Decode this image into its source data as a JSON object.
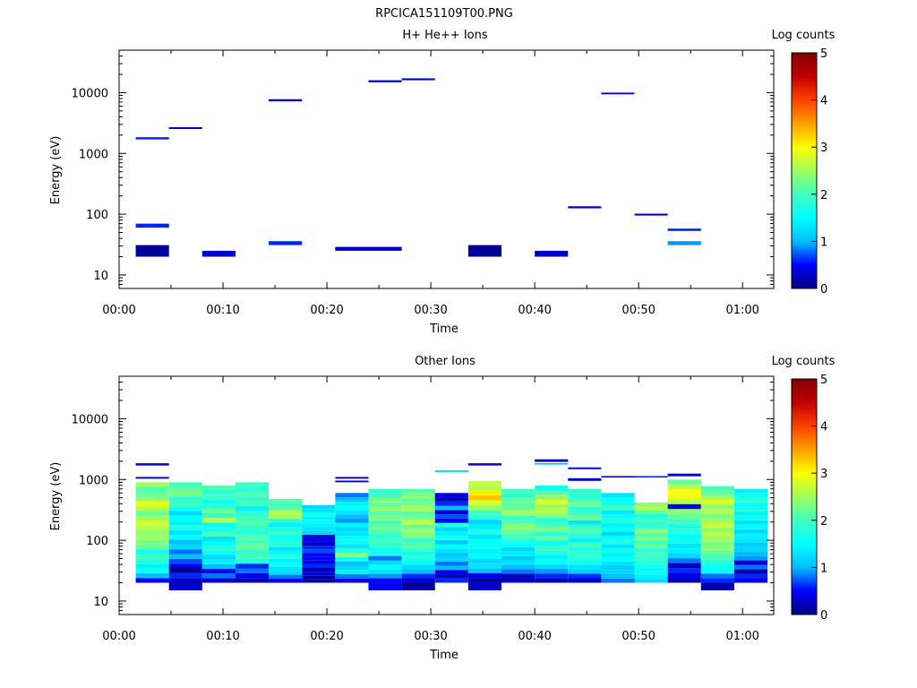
{
  "figure_title": "RPCICA151109T00.PNG",
  "colormap": [
    "#000080",
    "#0000ff",
    "#00bfff",
    "#00ffff",
    "#40ffbf",
    "#9fff5f",
    "#ffff00",
    "#ff9f00",
    "#ff3f00",
    "#c00000",
    "#800000"
  ],
  "chart_data": [
    {
      "type": "heatmap",
      "title": "H+ He++ Ions",
      "xlabel": "Time",
      "ylabel": "Energy (eV)",
      "x_ticks": [
        "00:00",
        "00:10",
        "00:20",
        "00:30",
        "00:40",
        "00:50",
        "01:00"
      ],
      "y_ticks": [
        "10",
        "100",
        "1000",
        "10000"
      ],
      "y_scale": "log",
      "ylim": [
        6,
        50000
      ],
      "xlim_minutes": [
        0,
        63
      ],
      "grid": false,
      "colorbar": {
        "label": "Log counts",
        "range": [
          0,
          5
        ],
        "ticks": [
          "0",
          "1",
          "2",
          "3",
          "4",
          "5"
        ]
      },
      "cells": [
        {
          "t0": 1.6,
          "t1": 4.8,
          "e0": 1700,
          "e1": 1850,
          "log_counts": 0.6
        },
        {
          "t0": 1.6,
          "t1": 4.8,
          "e0": 60,
          "e1": 70,
          "log_counts": 0.6
        },
        {
          "t0": 1.6,
          "t1": 4.8,
          "e0": 20,
          "e1": 31,
          "log_counts": 0.1
        },
        {
          "t0": 4.8,
          "t1": 8.0,
          "e0": 2520,
          "e1": 2700,
          "log_counts": 0.3
        },
        {
          "t0": 8.0,
          "t1": 11.2,
          "e0": 20,
          "e1": 25,
          "log_counts": 0.3
        },
        {
          "t0": 14.4,
          "t1": 17.6,
          "e0": 7200,
          "e1": 7800,
          "log_counts": 0.3
        },
        {
          "t0": 14.4,
          "t1": 17.6,
          "e0": 31,
          "e1": 36,
          "log_counts": 0.6
        },
        {
          "t0": 20.8,
          "t1": 27.2,
          "e0": 25,
          "e1": 29,
          "log_counts": 0.3
        },
        {
          "t0": 24.0,
          "t1": 27.2,
          "e0": 14800,
          "e1": 16000,
          "log_counts": 0.3
        },
        {
          "t0": 27.2,
          "t1": 30.4,
          "e0": 16000,
          "e1": 17200,
          "log_counts": 0.3
        },
        {
          "t0": 33.6,
          "t1": 36.8,
          "e0": 20,
          "e1": 31,
          "log_counts": 0.1
        },
        {
          "t0": 40.0,
          "t1": 43.2,
          "e0": 20,
          "e1": 25,
          "log_counts": 0.3
        },
        {
          "t0": 43.2,
          "t1": 46.4,
          "e0": 125,
          "e1": 135,
          "log_counts": 0.3
        },
        {
          "t0": 46.4,
          "t1": 49.6,
          "e0": 9400,
          "e1": 10000,
          "log_counts": 0.3
        },
        {
          "t0": 49.6,
          "t1": 52.8,
          "e0": 95,
          "e1": 102,
          "log_counts": 0.3
        },
        {
          "t0": 52.8,
          "t1": 56.0,
          "e0": 53,
          "e1": 58,
          "log_counts": 0.6
        },
        {
          "t0": 52.8,
          "t1": 56.0,
          "e0": 31,
          "e1": 36,
          "log_counts": 0.9
        }
      ]
    },
    {
      "type": "heatmap",
      "title": "Other Ions",
      "xlabel": "Time",
      "ylabel": "Energy (eV)",
      "x_ticks": [
        "00:00",
        "00:10",
        "00:20",
        "00:30",
        "00:40",
        "00:50",
        "01:00"
      ],
      "y_ticks": [
        "10",
        "100",
        "1000",
        "10000"
      ],
      "y_scale": "log",
      "ylim": [
        6,
        50000
      ],
      "xlim_minutes": [
        0,
        63
      ],
      "grid": false,
      "colorbar": {
        "label": "Log counts",
        "range": [
          0,
          5
        ],
        "ticks": [
          "0",
          "1",
          "2",
          "3",
          "4",
          "5"
        ]
      },
      "columns": [
        {
          "t0": 1.6,
          "t1": 4.8,
          "e_top": 900,
          "values": [
            0.5,
            1.0,
            1.6,
            1.4,
            1.8,
            2.0,
            1.6,
            2.2,
            2.3,
            2.5,
            2.4,
            2.6,
            2.8,
            2.5,
            2.2,
            2.6,
            2.9,
            2.4,
            2.2,
            2.1,
            2.5
          ],
          "extra": [
            {
              "e0": 1700,
              "e1": 1850,
              "v": 0.3
            },
            {
              "e0": 1030,
              "e1": 1100,
              "v": 0.3
            }
          ]
        },
        {
          "t0": 4.8,
          "t1": 8.0,
          "e_top": 900,
          "values": [
            0.2,
            0.6,
            0.0,
            0.4,
            0.7,
            1.0,
            0.8,
            1.2,
            1.0,
            1.5,
            1.3,
            1.7,
            1.4,
            1.5,
            1.2,
            1.6,
            2.0,
            1.8,
            2.3,
            2.2,
            2.0
          ],
          "extra": [
            {
              "e0": 15,
              "e1": 20,
              "v": 0.3
            }
          ]
        },
        {
          "t0": 8.0,
          "t1": 11.2,
          "e_top": 800,
          "values": [
            0.3,
            0.8,
            0.5,
            1.0,
            1.4,
            1.2,
            1.6,
            1.8,
            1.5,
            1.3,
            2.0,
            1.7,
            1.5,
            2.6,
            1.9,
            2.2,
            1.8,
            1.6,
            2.0,
            1.8,
            2.1
          ]
        },
        {
          "t0": 11.2,
          "t1": 14.4,
          "e_top": 900,
          "values": [
            0.2,
            0.4,
            0.8,
            0.6,
            1.8,
            2.0,
            1.9,
            2.2,
            2.0,
            2.1,
            1.8,
            1.9,
            2.1,
            2.0,
            1.8,
            1.4,
            2.0,
            1.9,
            2.1,
            1.8,
            2.0
          ]
        },
        {
          "t0": 14.4,
          "t1": 17.6,
          "e_top": 480,
          "values": [
            0.4,
            0.8,
            1.2,
            1.3,
            1.5,
            1.4,
            1.8,
            1.5,
            1.3,
            1.8,
            1.7,
            1.6,
            1.9,
            1.7,
            1.4,
            1.8,
            2.5,
            2.6,
            2.2,
            2.0,
            2.1
          ]
        },
        {
          "t0": 17.6,
          "t1": 20.8,
          "e_top": 380,
          "values": [
            0.2,
            0.1,
            0.4,
            0.2,
            0.6,
            0.4,
            0.5,
            0.4,
            0.7,
            0.6,
            0.2,
            0.5,
            0.3,
            1.2,
            1.3,
            1.4,
            1.5,
            1.4,
            1.6,
            1.3,
            1.2
          ]
        },
        {
          "t0": 20.8,
          "t1": 24.0,
          "e_top": 600,
          "values": [
            0.4,
            0.8,
            1.4,
            1.2,
            1.0,
            1.6,
            2.4,
            1.8,
            1.3,
            1.6,
            1.5,
            1.3,
            1.2,
            1.4,
            0.9,
            1.0,
            1.3,
            1.5,
            1.4,
            1.0,
            0.8
          ],
          "extra": [
            {
              "e0": 1030,
              "e1": 1100,
              "v": 0.3
            },
            {
              "e0": 900,
              "e1": 960,
              "v": 0.3
            }
          ]
        },
        {
          "t0": 24.0,
          "t1": 27.2,
          "e_top": 700,
          "values": [
            0.5,
            0.9,
            1.3,
            1.5,
            1.2,
            0.8,
            1.7,
            1.6,
            1.9,
            2.0,
            1.8,
            2.1,
            2.2,
            2.0,
            2.3,
            2.1,
            2.4,
            2.2,
            2.3,
            2.0,
            1.9
          ],
          "extra": [
            {
              "e0": 15,
              "e1": 20,
              "v": 0.5
            }
          ]
        },
        {
          "t0": 27.2,
          "t1": 30.4,
          "e_top": 700,
          "values": [
            0.3,
            0.6,
            1.0,
            1.2,
            1.5,
            1.8,
            1.6,
            2.0,
            2.1,
            1.9,
            2.3,
            2.5,
            2.2,
            2.7,
            2.3,
            2.1,
            2.5,
            2.3,
            2.2,
            2.4,
            2.1
          ],
          "extra": [
            {
              "e0": 15,
              "e1": 20,
              "v": 0.1
            }
          ]
        },
        {
          "t0": 30.4,
          "t1": 33.6,
          "e_top": 600,
          "values": [
            0.6,
            0.2,
            0.4,
            1.0,
            0.8,
            1.2,
            1.0,
            1.3,
            1.5,
            1.1,
            1.6,
            1.4,
            1.2,
            1.8,
            0.5,
            0.7,
            0.3,
            1.0,
            0.6,
            0.2,
            0.4
          ],
          "extra": [
            {
              "e0": 1330,
              "e1": 1420,
              "v": 1.2
            }
          ]
        },
        {
          "t0": 33.6,
          "t1": 36.8,
          "e_top": 950,
          "values": [
            0.1,
            0.4,
            1.0,
            1.3,
            1.2,
            1.5,
            1.4,
            1.6,
            1.5,
            1.3,
            1.7,
            1.4,
            1.2,
            1.8,
            2.0,
            2.5,
            2.8,
            3.3,
            3.1,
            2.6,
            2.7
          ],
          "extra": [
            {
              "e0": 1700,
              "e1": 1850,
              "v": 0.3
            },
            {
              "e0": 15,
              "e1": 20,
              "v": 0.3
            }
          ]
        },
        {
          "t0": 36.8,
          "t1": 40.0,
          "e_top": 700,
          "values": [
            0.3,
            0.2,
            0.8,
            1.0,
            1.3,
            1.1,
            1.4,
            1.2,
            1.5,
            1.8,
            2.0,
            2.2,
            2.4,
            2.1,
            1.9,
            2.5,
            2.3,
            2.1,
            2.2,
            1.8,
            2.0
          ]
        },
        {
          "t0": 40.0,
          "t1": 43.2,
          "e_top": 800,
          "values": [
            0.2,
            0.6,
            0.9,
            1.2,
            1.5,
            1.4,
            1.7,
            2.0,
            1.6,
            2.2,
            1.8,
            2.3,
            2.0,
            1.8,
            2.4,
            2.6,
            2.5,
            2.8,
            2.4,
            2.1,
            1.6
          ],
          "extra": [
            {
              "e0": 1950,
              "e1": 2150,
              "v": 0.3
            },
            {
              "e0": 1760,
              "e1": 1860,
              "v": 1.0
            }
          ]
        },
        {
          "t0": 43.2,
          "t1": 46.4,
          "e_top": 700,
          "values": [
            0.3,
            0.6,
            1.1,
            1.3,
            1.6,
            1.8,
            1.9,
            1.7,
            2.0,
            1.4,
            1.8,
            2.1,
            1.9,
            1.3,
            2.2,
            2.0,
            1.8,
            2.3,
            2.0,
            1.8,
            1.9
          ],
          "extra": [
            {
              "e0": 1480,
              "e1": 1580,
              "v": 0.3
            },
            {
              "e0": 950,
              "e1": 1050,
              "v": 0.3
            }
          ]
        },
        {
          "t0": 46.4,
          "t1": 49.6,
          "e_top": 600,
          "values": [
            0.8,
            1.0,
            1.2,
            1.1,
            1.3,
            1.5,
            1.4,
            1.6,
            1.3,
            1.7,
            1.5,
            1.2,
            1.6,
            1.4,
            1.8,
            1.5,
            1.3,
            2.0,
            1.6,
            1.5,
            1.3
          ],
          "extra": [
            {
              "e0": 1080,
              "e1": 1140,
              "v": 0.3
            }
          ]
        },
        {
          "t0": 49.6,
          "t1": 52.8,
          "e_top": 420,
          "values": [
            1.2,
            1.4,
            1.6,
            1.5,
            1.7,
            1.8,
            1.9,
            2.0,
            1.8,
            2.2,
            2.0,
            2.3,
            2.1,
            2.4,
            1.9,
            1.8,
            2.0,
            1.7,
            2.2,
            2.6,
            2.4
          ],
          "extra": [
            {
              "e0": 1080,
              "e1": 1140,
              "v": 0.6
            }
          ]
        },
        {
          "t0": 52.8,
          "t1": 56.0,
          "e_top": 1000,
          "values": [
            0.2,
            0.4,
            0.6,
            0.2,
            0.8,
            1.2,
            1.4,
            1.3,
            1.6,
            1.5,
            1.8,
            1.7,
            2.0,
            2.2,
            2.4,
            0.4,
            2.6,
            2.9,
            3.0,
            2.6,
            2.2
          ],
          "extra": [
            {
              "e0": 1130,
              "e1": 1250,
              "v": 0.3
            }
          ]
        },
        {
          "t0": 56.0,
          "t1": 59.2,
          "e_top": 780,
          "values": [
            0.6,
            0.8,
            1.5,
            1.6,
            1.8,
            2.0,
            2.2,
            2.4,
            2.3,
            2.5,
            2.6,
            2.4,
            2.7,
            2.5,
            2.3,
            2.6,
            2.4,
            2.8,
            2.5,
            2.2,
            2.0
          ],
          "extra": [
            {
              "e0": 15,
              "e1": 20,
              "v": 0.2
            }
          ]
        },
        {
          "t0": 59.2,
          "t1": 62.4,
          "e_top": 700,
          "values": [
            0.4,
            0.6,
            0.2,
            0.8,
            0.3,
            0.9,
            1.0,
            1.2,
            1.1,
            1.3,
            1.4,
            1.2,
            1.5,
            1.3,
            1.6,
            1.4,
            1.7,
            1.5,
            1.8,
            1.6,
            1.4
          ]
        }
      ]
    }
  ]
}
